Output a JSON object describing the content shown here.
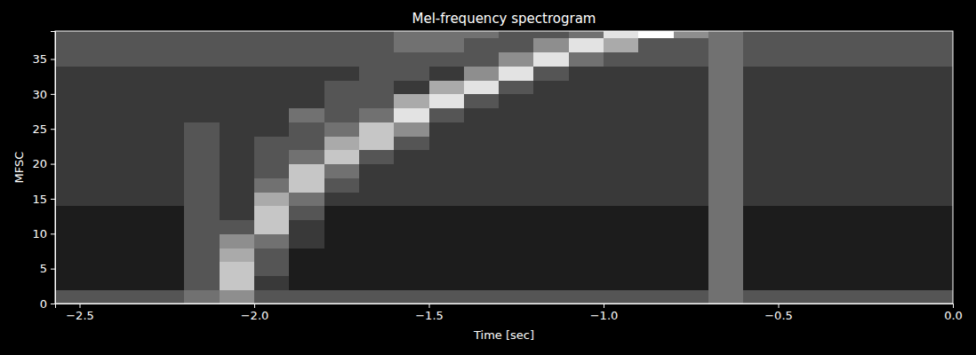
{
  "chart_data": {
    "type": "heatmap",
    "title": "Mel-frequency spectrogram",
    "x_label": "Time [sec]",
    "y_label": "MFSC",
    "xlim": [
      -2.57,
      0
    ],
    "ylim": [
      0,
      39
    ],
    "xticks": [
      {
        "value": -2.5,
        "label": "−2.5"
      },
      {
        "value": -2.0,
        "label": "−2.0"
      },
      {
        "value": -1.5,
        "label": "−1.5"
      },
      {
        "value": -1.0,
        "label": "−1.0"
      },
      {
        "value": -0.5,
        "label": "−0.5"
      },
      {
        "value": 0,
        "label": "0.0"
      }
    ],
    "yticks": [
      0,
      5,
      10,
      15,
      20,
      25,
      30,
      35
    ],
    "zlim": [
      0,
      9
    ],
    "x_edges": [
      -2.57,
      -2.5,
      -2.4,
      -2.3,
      -2.2,
      -2.1,
      -2.0,
      -1.9,
      -1.8,
      -1.7,
      -1.6,
      -1.5,
      -1.4,
      -1.3,
      -1.2,
      -1.1,
      -1.0,
      -0.9,
      -0.8,
      -0.7,
      -0.6,
      -0.5,
      -0.4,
      -0.3,
      -0.2,
      -0.1,
      0
    ],
    "y_edges": [
      0,
      2,
      4,
      6,
      8,
      10,
      12,
      14,
      16,
      18,
      20,
      22,
      24,
      26,
      28,
      30,
      32,
      34,
      36,
      38,
      39
    ],
    "cells": [
      [
        3,
        3,
        3,
        3,
        4,
        5,
        3,
        3,
        3,
        3,
        3,
        3,
        3,
        3,
        3,
        3,
        3,
        3,
        3,
        4,
        3,
        3,
        3,
        3,
        3,
        3
      ],
      [
        1,
        1,
        1,
        1,
        3,
        7,
        2,
        1,
        1,
        1,
        1,
        1,
        1,
        1,
        1,
        1,
        1,
        1,
        1,
        4,
        1,
        1,
        1,
        1,
        1,
        1
      ],
      [
        1,
        1,
        1,
        1,
        3,
        7,
        3,
        1,
        1,
        1,
        1,
        1,
        1,
        1,
        1,
        1,
        1,
        1,
        1,
        4,
        1,
        1,
        1,
        1,
        1,
        1
      ],
      [
        1,
        1,
        1,
        1,
        3,
        6,
        3,
        1,
        1,
        1,
        1,
        1,
        1,
        1,
        1,
        1,
        1,
        1,
        1,
        4,
        1,
        1,
        1,
        1,
        1,
        1
      ],
      [
        1,
        1,
        1,
        1,
        3,
        5,
        4,
        2,
        1,
        1,
        1,
        1,
        1,
        1,
        1,
        1,
        1,
        1,
        1,
        4,
        1,
        1,
        1,
        1,
        1,
        1
      ],
      [
        1,
        1,
        1,
        1,
        3,
        3,
        7,
        2,
        1,
        1,
        1,
        1,
        1,
        1,
        1,
        1,
        1,
        1,
        1,
        4,
        1,
        1,
        1,
        1,
        1,
        1
      ],
      [
        1,
        1,
        1,
        1,
        3,
        2,
        7,
        3,
        1,
        1,
        1,
        1,
        1,
        1,
        1,
        1,
        1,
        1,
        1,
        4,
        1,
        1,
        1,
        1,
        1,
        1
      ],
      [
        2,
        2,
        2,
        2,
        3,
        2,
        6,
        4,
        2,
        2,
        2,
        2,
        2,
        2,
        2,
        2,
        2,
        2,
        2,
        4,
        2,
        2,
        2,
        2,
        2,
        2
      ],
      [
        2,
        2,
        2,
        2,
        3,
        2,
        4,
        7,
        3,
        2,
        2,
        2,
        2,
        2,
        2,
        2,
        2,
        2,
        2,
        4,
        2,
        2,
        2,
        2,
        2,
        2
      ],
      [
        2,
        2,
        2,
        2,
        3,
        2,
        3,
        7,
        4,
        2,
        2,
        2,
        2,
        2,
        2,
        2,
        2,
        2,
        2,
        4,
        2,
        2,
        2,
        2,
        2,
        2
      ],
      [
        2,
        2,
        2,
        2,
        3,
        2,
        3,
        4,
        7,
        3,
        2,
        2,
        2,
        2,
        2,
        2,
        2,
        2,
        2,
        4,
        2,
        2,
        2,
        2,
        2,
        2
      ],
      [
        2,
        2,
        2,
        2,
        3,
        2,
        3,
        3,
        6,
        7,
        3,
        2,
        2,
        2,
        2,
        2,
        2,
        2,
        2,
        4,
        2,
        2,
        2,
        2,
        2,
        2
      ],
      [
        2,
        2,
        2,
        2,
        3,
        2,
        2,
        3,
        4,
        7,
        5,
        2,
        2,
        2,
        2,
        2,
        2,
        2,
        2,
        4,
        2,
        2,
        2,
        2,
        2,
        2
      ],
      [
        2,
        2,
        2,
        2,
        2,
        2,
        2,
        4,
        3,
        4,
        8,
        3,
        2,
        2,
        2,
        2,
        2,
        2,
        2,
        4,
        2,
        2,
        2,
        2,
        2,
        2
      ],
      [
        2,
        2,
        2,
        2,
        2,
        2,
        2,
        2,
        3,
        3,
        6,
        8,
        3,
        2,
        2,
        2,
        2,
        2,
        2,
        4,
        2,
        2,
        2,
        2,
        2,
        2
      ],
      [
        2,
        2,
        2,
        2,
        2,
        2,
        2,
        2,
        3,
        3,
        2,
        6,
        8,
        3,
        2,
        2,
        2,
        2,
        2,
        4,
        2,
        2,
        2,
        2,
        2,
        2
      ],
      [
        2,
        2,
        2,
        2,
        2,
        2,
        2,
        2,
        2,
        3,
        3,
        2,
        5,
        8,
        3,
        2,
        2,
        2,
        2,
        4,
        2,
        2,
        2,
        2,
        2,
        2
      ],
      [
        3,
        3,
        3,
        3,
        3,
        3,
        3,
        3,
        3,
        3,
        3,
        3,
        3,
        5,
        8,
        4,
        3,
        3,
        3,
        4,
        3,
        3,
        3,
        3,
        3,
        3
      ],
      [
        3,
        3,
        3,
        3,
        3,
        3,
        3,
        3,
        3,
        3,
        4,
        4,
        3,
        3,
        5,
        8,
        6,
        3,
        3,
        4,
        3,
        3,
        3,
        3,
        3,
        3
      ],
      [
        3,
        3,
        3,
        3,
        3,
        3,
        3,
        3,
        3,
        3,
        4,
        4,
        4,
        3,
        3,
        4,
        8,
        9,
        5,
        4,
        3,
        3,
        3,
        3,
        3,
        3
      ]
    ]
  }
}
